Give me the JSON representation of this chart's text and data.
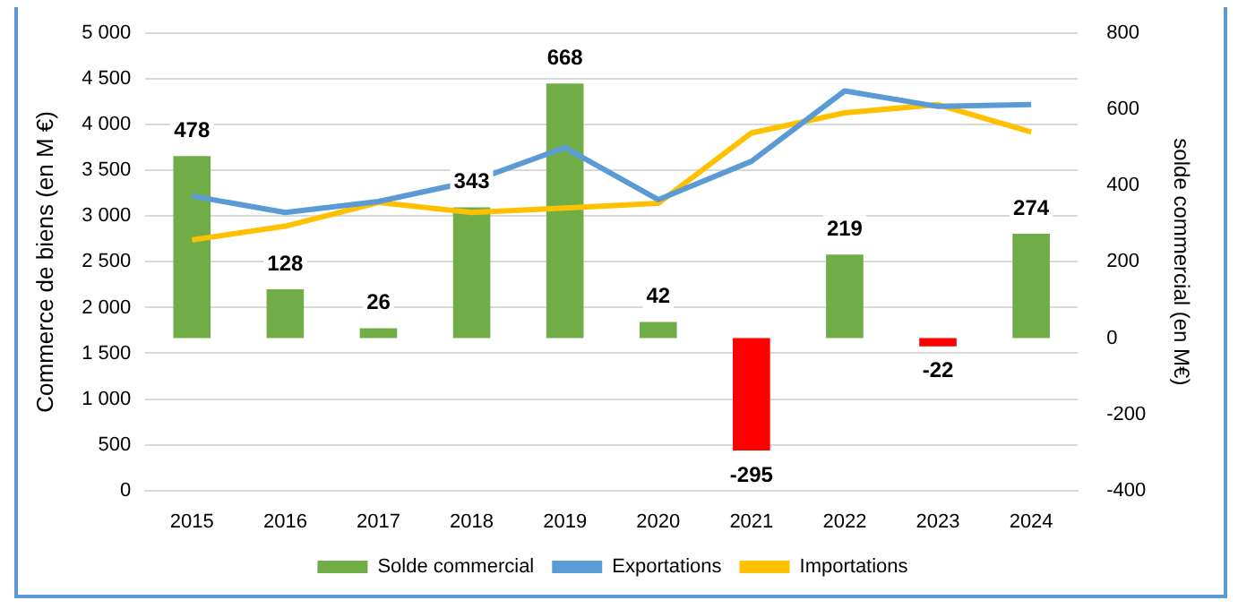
{
  "chart_data": {
    "type": "bar",
    "categories": [
      "2015",
      "2016",
      "2017",
      "2018",
      "2019",
      "2020",
      "2021",
      "2022",
      "2023",
      "2024"
    ],
    "series": [
      {
        "name": "Solde commercial",
        "axis": "y2",
        "colors": [
          "#70ad47",
          "#70ad47",
          "#70ad47",
          "#70ad47",
          "#70ad47",
          "#70ad47",
          "#ff0000",
          "#70ad47",
          "#ff0000",
          "#70ad47"
        ],
        "values": [
          478,
          128,
          26,
          343,
          668,
          42,
          -295,
          219,
          -22,
          274
        ],
        "value_labels": [
          "478",
          "128",
          "26",
          "343",
          "668",
          "42",
          "-295",
          "219",
          "-22",
          "274"
        ]
      },
      {
        "name": "Exportations",
        "type": "line",
        "color": "#5b9bd5",
        "values": [
          3220,
          3040,
          3160,
          3380,
          3750,
          3180,
          3600,
          4370,
          4200,
          4220
        ]
      },
      {
        "name": "Importations",
        "type": "line",
        "color": "#ffc000",
        "values": [
          2740,
          2890,
          3150,
          3040,
          3090,
          3140,
          3910,
          4130,
          4220,
          3920
        ]
      }
    ],
    "ylabel": "Commerce de biens (en M €)",
    "y2label": "solde commercial (en M€)",
    "ylim": [
      0,
      5000
    ],
    "yticks": [
      0,
      {
        "value": 500,
        "label": "500"
      },
      {
        "value": 1000,
        "label": "1 000"
      },
      {
        "value": 1500,
        "label": "1 500"
      },
      {
        "value": 2000,
        "label": "2 000"
      },
      {
        "value": 2500,
        "label": "2 500"
      },
      {
        "value": 3000,
        "label": "3 000"
      },
      {
        "value": 3500,
        "label": "3 500"
      },
      {
        "value": 4000,
        "label": "4 000"
      },
      {
        "value": 4500,
        "label": "4 500"
      },
      {
        "value": 5000,
        "label": "5 000"
      }
    ],
    "y2lim": [
      -400,
      800
    ],
    "y2ticks": [
      -400,
      -200,
      0,
      200,
      400,
      600,
      800
    ],
    "grid": "y",
    "legend": "bottom",
    "marker": "none"
  }
}
